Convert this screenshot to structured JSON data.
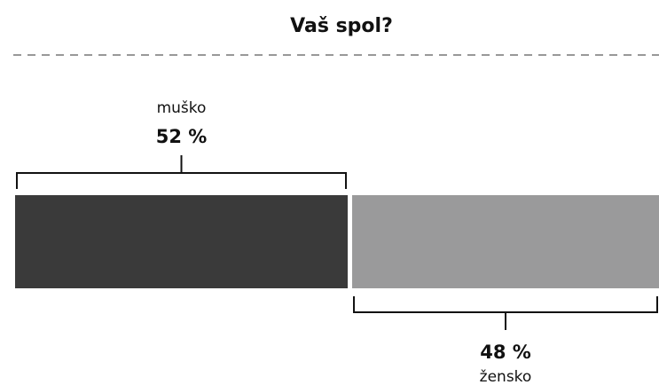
{
  "chart_data": {
    "type": "stacked-bar",
    "title": "Vaš spol?",
    "categories": [
      "muško",
      "žensko"
    ],
    "values": [
      52,
      48
    ],
    "value_labels": [
      "52 %",
      "48 %"
    ],
    "colors": [
      "#3a3a3a",
      "#9a9a9b"
    ]
  }
}
